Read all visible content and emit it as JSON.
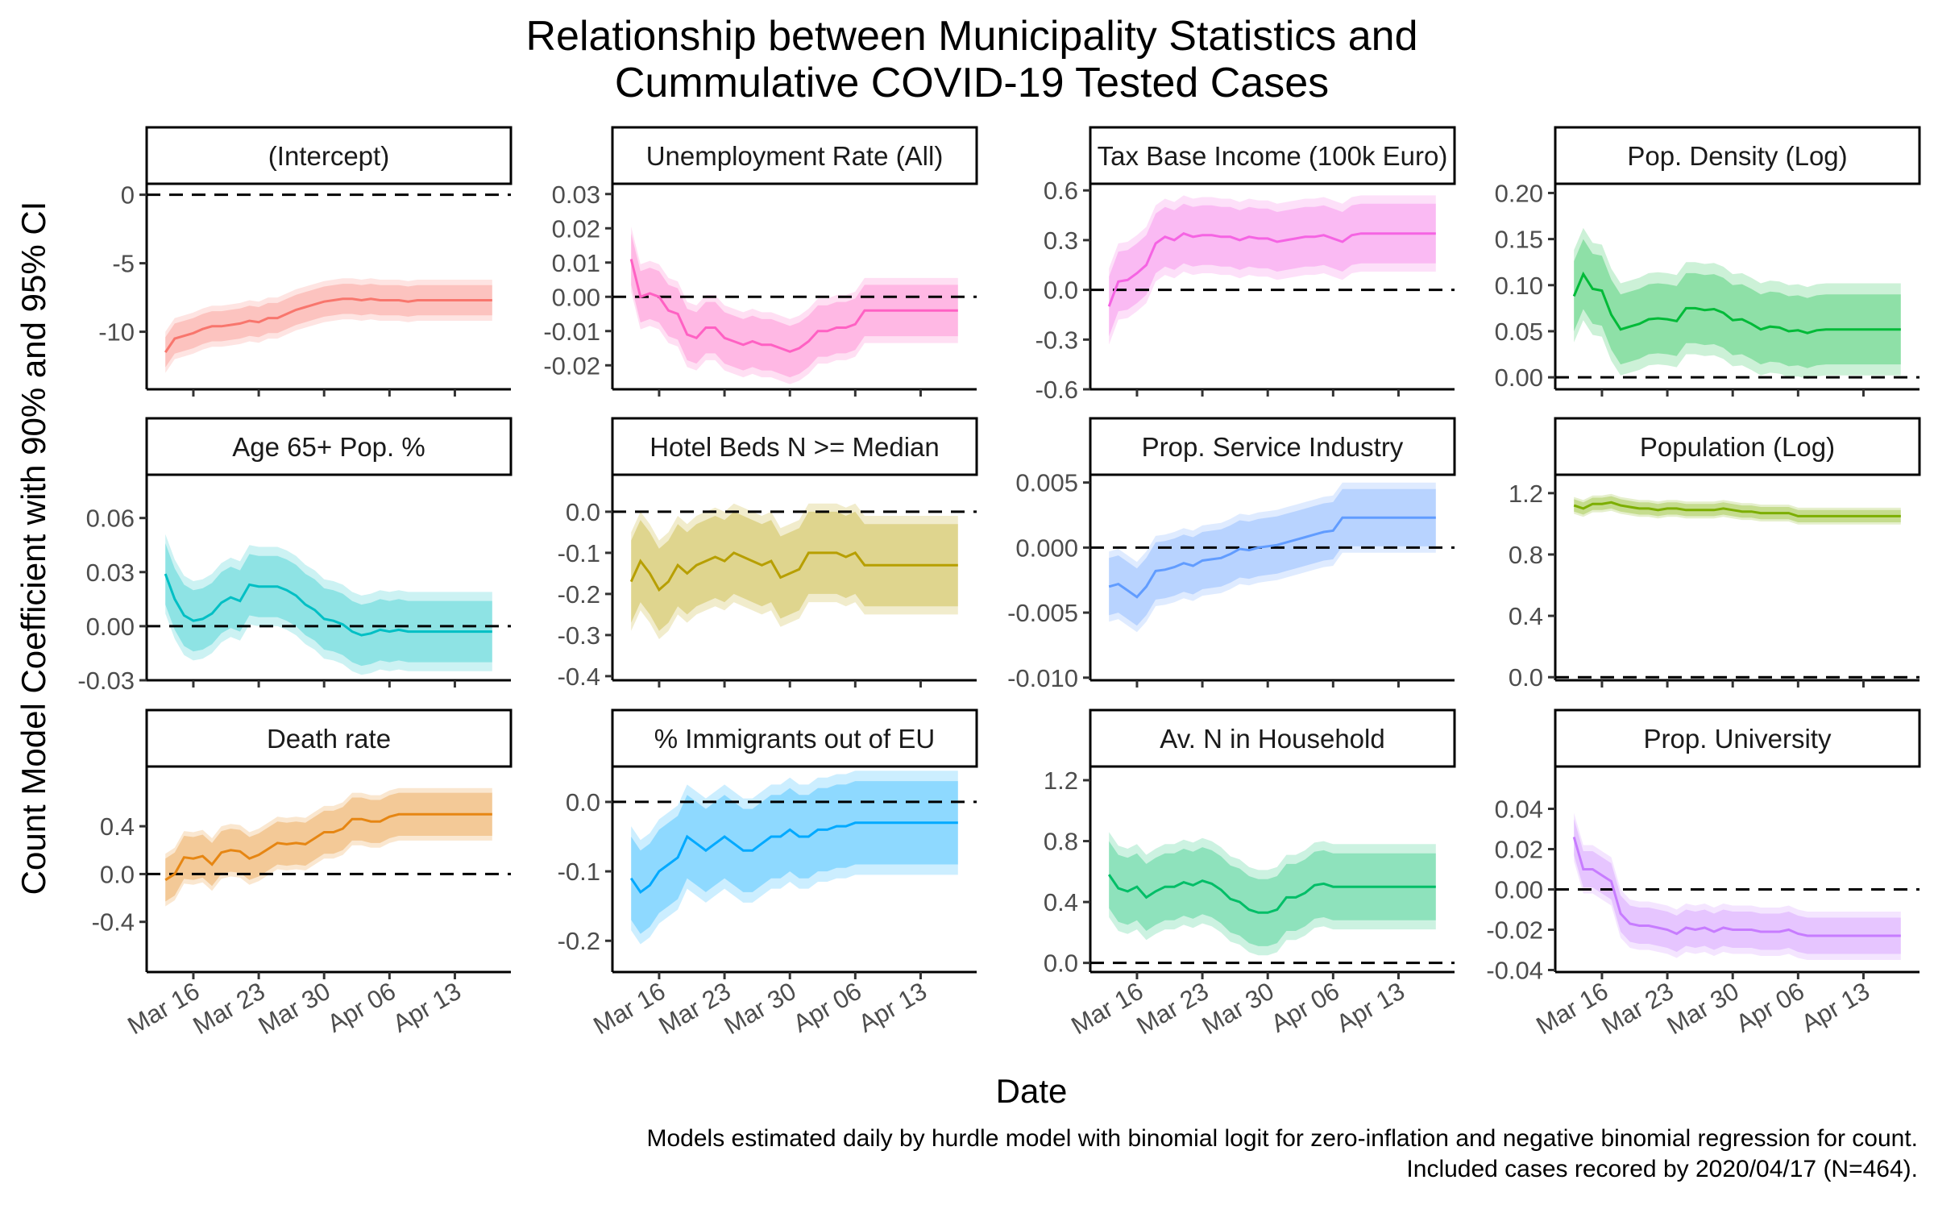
{
  "title_lines": [
    "Relationship between Municipality Statistics and",
    "Cummulative COVID-19 Tested Cases"
  ],
  "xlabel": "Date",
  "ylabel": "Count Model Coefficient with 90% and 95% CI",
  "caption_lines": [
    "Models estimated daily by hurdle model with binomial logit for zero-inflation and negative binomial regression for count.",
    "Included cases recored by 2020/04/17 (N=464)."
  ],
  "chart_data": {
    "type": "line",
    "x_ticks": [
      {
        "date": "2020-03-16",
        "label": "Mar 16"
      },
      {
        "date": "2020-03-23",
        "label": "Mar 23"
      },
      {
        "date": "2020-03-30",
        "label": "Mar 30"
      },
      {
        "date": "2020-04-06",
        "label": "Apr 06"
      },
      {
        "date": "2020-04-13",
        "label": "Apr 13"
      }
    ],
    "xlim": [
      "2020-03-11",
      "2020-04-19"
    ],
    "dates": [
      "2020-03-13",
      "2020-03-14",
      "2020-03-15",
      "2020-03-16",
      "2020-03-17",
      "2020-03-18",
      "2020-03-19",
      "2020-03-20",
      "2020-03-21",
      "2020-03-22",
      "2020-03-23",
      "2020-03-24",
      "2020-03-25",
      "2020-03-26",
      "2020-03-27",
      "2020-03-28",
      "2020-03-29",
      "2020-03-30",
      "2020-03-31",
      "2020-04-01",
      "2020-04-02",
      "2020-04-03",
      "2020-04-04",
      "2020-04-05",
      "2020-04-06",
      "2020-04-07",
      "2020-04-08",
      "2020-04-09",
      "2020-04-10",
      "2020-04-11",
      "2020-04-12",
      "2020-04-13",
      "2020-04-14",
      "2020-04-15",
      "2020-04-16",
      "2020-04-17"
    ],
    "panels": [
      {
        "name": "(Intercept)",
        "color": "#F8766D",
        "ylim": [
          -14.2,
          0.8
        ],
        "ticks": [
          {
            "v": 0,
            "l": "0"
          },
          {
            "v": -5,
            "l": "-5"
          },
          {
            "v": -10,
            "l": "-10"
          }
        ],
        "est": [
          -11.5,
          -10.5,
          -10.3,
          -10.1,
          -9.8,
          -9.6,
          -9.6,
          -9.5,
          -9.4,
          -9.2,
          -9.3,
          -9.0,
          -9.0,
          -8.7,
          -8.4,
          -8.2,
          -8.0,
          -7.8,
          -7.7,
          -7.6,
          -7.6,
          -7.7,
          -7.6,
          -7.7,
          -7.7,
          -7.7,
          -7.8,
          -7.7,
          -7.7,
          -7.7,
          -7.7,
          -7.7,
          -7.7,
          -7.7,
          -7.7,
          -7.7
        ],
        "half90": 1.1,
        "half95": 1.5
      },
      {
        "name": "Unemployment Rate (All)",
        "color": "#FF61C3",
        "ylim": [
          -0.027,
          0.033
        ],
        "ticks": [
          {
            "v": 0.03,
            "l": "0.03"
          },
          {
            "v": 0.02,
            "l": "0.02"
          },
          {
            "v": 0.01,
            "l": "0.01"
          },
          {
            "v": 0.0,
            "l": "0.00"
          },
          {
            "v": -0.01,
            "l": "-0.01"
          },
          {
            "v": -0.02,
            "l": "-0.02"
          }
        ],
        "est": [
          0.011,
          0.0,
          0.001,
          0.0,
          -0.004,
          -0.005,
          -0.011,
          -0.012,
          -0.009,
          -0.009,
          -0.012,
          -0.013,
          -0.014,
          -0.013,
          -0.014,
          -0.014,
          -0.015,
          -0.016,
          -0.015,
          -0.013,
          -0.01,
          -0.01,
          -0.009,
          -0.009,
          -0.008,
          -0.004,
          -0.004,
          -0.004,
          -0.004,
          -0.004,
          -0.004,
          -0.004,
          -0.004,
          -0.004,
          -0.004,
          -0.004
        ],
        "half90": 0.0075,
        "half95": 0.0095
      },
      {
        "name": "Tax Base Income (100k Euro)",
        "color": "#F564E3",
        "ylim": [
          -0.6,
          0.64
        ],
        "ticks": [
          {
            "v": 0.6,
            "l": "0.6"
          },
          {
            "v": 0.3,
            "l": "0.3"
          },
          {
            "v": 0.0,
            "l": "0.0"
          },
          {
            "v": -0.3,
            "l": "-0.3"
          },
          {
            "v": -0.6,
            "l": "-0.6"
          }
        ],
        "est": [
          -0.1,
          0.05,
          0.06,
          0.1,
          0.15,
          0.28,
          0.32,
          0.3,
          0.34,
          0.32,
          0.33,
          0.33,
          0.32,
          0.32,
          0.3,
          0.32,
          0.31,
          0.31,
          0.29,
          0.3,
          0.31,
          0.32,
          0.32,
          0.33,
          0.31,
          0.29,
          0.33,
          0.34,
          0.34,
          0.34,
          0.34,
          0.34,
          0.34,
          0.34,
          0.34,
          0.34
        ],
        "half90": 0.18,
        "half95": 0.23
      },
      {
        "name": "Pop. Density (Log)",
        "color": "#00BA38",
        "ylim": [
          -0.013,
          0.21
        ],
        "ticks": [
          {
            "v": 0.2,
            "l": "0.20"
          },
          {
            "v": 0.15,
            "l": "0.15"
          },
          {
            "v": 0.1,
            "l": "0.10"
          },
          {
            "v": 0.05,
            "l": "0.05"
          },
          {
            "v": 0.0,
            "l": "0.00"
          }
        ],
        "est": [
          0.088,
          0.112,
          0.096,
          0.094,
          0.068,
          0.052,
          0.055,
          0.058,
          0.063,
          0.064,
          0.063,
          0.061,
          0.075,
          0.075,
          0.073,
          0.074,
          0.07,
          0.062,
          0.063,
          0.058,
          0.052,
          0.055,
          0.054,
          0.05,
          0.051,
          0.048,
          0.051,
          0.052,
          0.052,
          0.052,
          0.052,
          0.052,
          0.052,
          0.052,
          0.052,
          0.052
        ],
        "half90": 0.038,
        "half95": 0.05
      },
      {
        "name": "Age 65+ Pop. %",
        "color": "#00BFC4",
        "ylim": [
          -0.03,
          0.084
        ],
        "ticks": [
          {
            "v": 0.06,
            "l": "0.06"
          },
          {
            "v": 0.03,
            "l": "0.03"
          },
          {
            "v": 0.0,
            "l": "0.00"
          },
          {
            "v": -0.03,
            "l": "-0.03"
          }
        ],
        "est": [
          0.029,
          0.015,
          0.006,
          0.003,
          0.004,
          0.007,
          0.013,
          0.016,
          0.014,
          0.023,
          0.022,
          0.022,
          0.022,
          0.02,
          0.017,
          0.012,
          0.009,
          0.004,
          0.003,
          0.001,
          -0.003,
          -0.005,
          -0.004,
          -0.002,
          -0.003,
          -0.002,
          -0.003,
          -0.003,
          -0.003,
          -0.003,
          -0.003,
          -0.003,
          -0.003,
          -0.003,
          -0.003,
          -0.003
        ],
        "half90": 0.017,
        "half95": 0.022
      },
      {
        "name": "Hotel Beds N >= Median",
        "color": "#B79F00",
        "ylim": [
          -0.41,
          0.09
        ],
        "ticks": [
          {
            "v": 0.0,
            "l": "0.0"
          },
          {
            "v": -0.1,
            "l": "-0.1"
          },
          {
            "v": -0.2,
            "l": "-0.2"
          },
          {
            "v": -0.3,
            "l": "-0.3"
          },
          {
            "v": -0.4,
            "l": "-0.4"
          }
        ],
        "est": [
          -0.17,
          -0.12,
          -0.15,
          -0.19,
          -0.17,
          -0.13,
          -0.15,
          -0.13,
          -0.12,
          -0.11,
          -0.12,
          -0.1,
          -0.11,
          -0.12,
          -0.13,
          -0.12,
          -0.16,
          -0.15,
          -0.14,
          -0.1,
          -0.1,
          -0.1,
          -0.1,
          -0.11,
          -0.1,
          -0.13,
          -0.13,
          -0.13,
          -0.13,
          -0.13,
          -0.13,
          -0.13,
          -0.13,
          -0.13,
          -0.13,
          -0.13
        ],
        "half90": 0.1,
        "half95": 0.12
      },
      {
        "name": "Prop. Service Industry",
        "color": "#619CFF",
        "ylim": [
          -0.0102,
          0.0056
        ],
        "ticks": [
          {
            "v": 0.005,
            "l": "0.005"
          },
          {
            "v": 0.0,
            "l": "0.000"
          },
          {
            "v": -0.005,
            "l": "-0.005"
          },
          {
            "v": -0.01,
            "l": "-0.010"
          }
        ],
        "est": [
          -0.003,
          -0.0028,
          -0.0033,
          -0.0038,
          -0.003,
          -0.0018,
          -0.0017,
          -0.0015,
          -0.0012,
          -0.0014,
          -0.001,
          -0.0009,
          -0.0008,
          -0.0005,
          -0.0001,
          -0.0002,
          0.0,
          0.0001,
          0.0002,
          0.0004,
          0.0006,
          0.0008,
          0.001,
          0.0012,
          0.0013,
          0.0023,
          0.0023,
          0.0023,
          0.0023,
          0.0023,
          0.0023,
          0.0023,
          0.0023,
          0.0023,
          0.0023,
          0.0023
        ],
        "half90": 0.0022,
        "half95": 0.0027
      },
      {
        "name": "Population (Log)",
        "color": "#7CAE00",
        "ylim": [
          -0.02,
          1.32
        ],
        "ticks": [
          {
            "v": 1.2,
            "l": "1.2"
          },
          {
            "v": 0.8,
            "l": "0.8"
          },
          {
            "v": 0.4,
            "l": "0.4"
          },
          {
            "v": 0.0,
            "l": "0.0"
          }
        ],
        "est": [
          1.12,
          1.1,
          1.13,
          1.13,
          1.14,
          1.12,
          1.11,
          1.1,
          1.1,
          1.09,
          1.1,
          1.1,
          1.09,
          1.09,
          1.09,
          1.09,
          1.1,
          1.09,
          1.08,
          1.08,
          1.07,
          1.07,
          1.07,
          1.07,
          1.05,
          1.05,
          1.05,
          1.05,
          1.05,
          1.05,
          1.05,
          1.05,
          1.05,
          1.05,
          1.05,
          1.05
        ],
        "half90": 0.04,
        "half95": 0.055
      },
      {
        "name": "Death rate",
        "color": "#E68613",
        "ylim": [
          -0.82,
          0.9
        ],
        "ticks": [
          {
            "v": 0.4,
            "l": "0.4"
          },
          {
            "v": 0.0,
            "l": "0.0"
          },
          {
            "v": -0.4,
            "l": "-0.4"
          }
        ],
        "est": [
          -0.05,
          0.0,
          0.14,
          0.13,
          0.15,
          0.08,
          0.18,
          0.2,
          0.19,
          0.13,
          0.16,
          0.21,
          0.26,
          0.25,
          0.26,
          0.25,
          0.3,
          0.35,
          0.35,
          0.38,
          0.46,
          0.46,
          0.44,
          0.44,
          0.48,
          0.5,
          0.5,
          0.5,
          0.5,
          0.5,
          0.5,
          0.5,
          0.5,
          0.5,
          0.5,
          0.5
        ],
        "half90": 0.18,
        "half95": 0.22
      },
      {
        "name": "% Immigrants out of EU",
        "color": "#00A9FF",
        "ylim": [
          -0.245,
          0.051
        ],
        "ticks": [
          {
            "v": 0.0,
            "l": "0.0"
          },
          {
            "v": -0.1,
            "l": "-0.1"
          },
          {
            "v": -0.2,
            "l": "-0.2"
          }
        ],
        "est": [
          -0.11,
          -0.13,
          -0.12,
          -0.1,
          -0.09,
          -0.08,
          -0.05,
          -0.06,
          -0.07,
          -0.06,
          -0.05,
          -0.06,
          -0.07,
          -0.07,
          -0.06,
          -0.05,
          -0.05,
          -0.04,
          -0.05,
          -0.05,
          -0.04,
          -0.04,
          -0.035,
          -0.035,
          -0.03,
          -0.03,
          -0.03,
          -0.03,
          -0.03,
          -0.03,
          -0.03,
          -0.03,
          -0.03,
          -0.03,
          -0.03,
          -0.03
        ],
        "half90": 0.06,
        "half95": 0.075
      },
      {
        "name": "Av. N in Household",
        "color": "#00BE67",
        "ylim": [
          -0.06,
          1.29
        ],
        "ticks": [
          {
            "v": 1.2,
            "l": "1.2"
          },
          {
            "v": 0.8,
            "l": "0.8"
          },
          {
            "v": 0.4,
            "l": "0.4"
          },
          {
            "v": 0.0,
            "l": "0.0"
          }
        ],
        "est": [
          0.58,
          0.49,
          0.47,
          0.5,
          0.43,
          0.47,
          0.5,
          0.5,
          0.53,
          0.51,
          0.54,
          0.52,
          0.48,
          0.42,
          0.4,
          0.35,
          0.33,
          0.33,
          0.35,
          0.43,
          0.43,
          0.46,
          0.51,
          0.52,
          0.5,
          0.5,
          0.5,
          0.5,
          0.5,
          0.5,
          0.5,
          0.5,
          0.5,
          0.5,
          0.5,
          0.5
        ],
        "half90": 0.22,
        "half95": 0.28
      },
      {
        "name": "Prop. University",
        "color": "#C77CFF",
        "ylim": [
          -0.041,
          0.061
        ],
        "ticks": [
          {
            "v": 0.04,
            "l": "0.04"
          },
          {
            "v": 0.02,
            "l": "0.02"
          },
          {
            "v": 0.0,
            "l": "0.00"
          },
          {
            "v": -0.02,
            "l": "-0.02"
          },
          {
            "v": -0.04,
            "l": "-0.04"
          }
        ],
        "est": [
          0.026,
          0.01,
          0.01,
          0.007,
          0.004,
          -0.012,
          -0.017,
          -0.018,
          -0.018,
          -0.019,
          -0.02,
          -0.022,
          -0.019,
          -0.02,
          -0.019,
          -0.021,
          -0.019,
          -0.02,
          -0.02,
          -0.02,
          -0.021,
          -0.021,
          -0.021,
          -0.02,
          -0.022,
          -0.023,
          -0.023,
          -0.023,
          -0.023,
          -0.023,
          -0.023,
          -0.023,
          -0.023,
          -0.023,
          -0.023,
          -0.023
        ],
        "half90": 0.009,
        "half95": 0.012
      }
    ]
  }
}
